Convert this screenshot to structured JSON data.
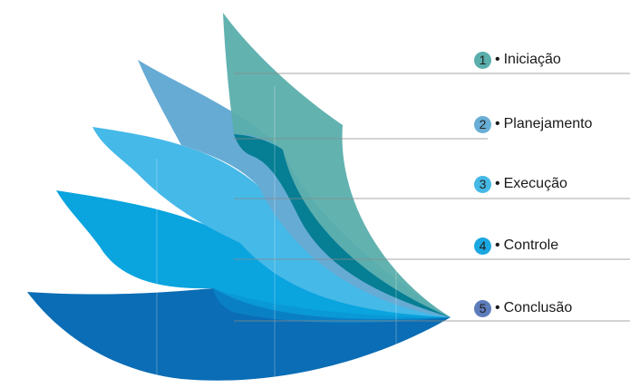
{
  "steps": [
    {
      "number": "1",
      "label": "Iniciação",
      "color": "#5aaeac"
    },
    {
      "number": "2",
      "label": "Planejamento",
      "color": "#68aed6"
    },
    {
      "number": "3",
      "label": "Execução",
      "color": "#45b9e6"
    },
    {
      "number": "4",
      "label": "Controle",
      "color": "#1ba7e0"
    },
    {
      "number": "5",
      "label": "Conclusão",
      "color": "#5c7cbc"
    }
  ],
  "bullet_char": "•",
  "palette": {
    "iniciacao": "#5aaeac",
    "planejamento": "#66abd4",
    "execucao": "#45b9e8",
    "controle": "#0aa4df",
    "conclusao": "#0a6db5",
    "overlap_dark": "#067e93",
    "guide_line": "#8a8a8a"
  }
}
